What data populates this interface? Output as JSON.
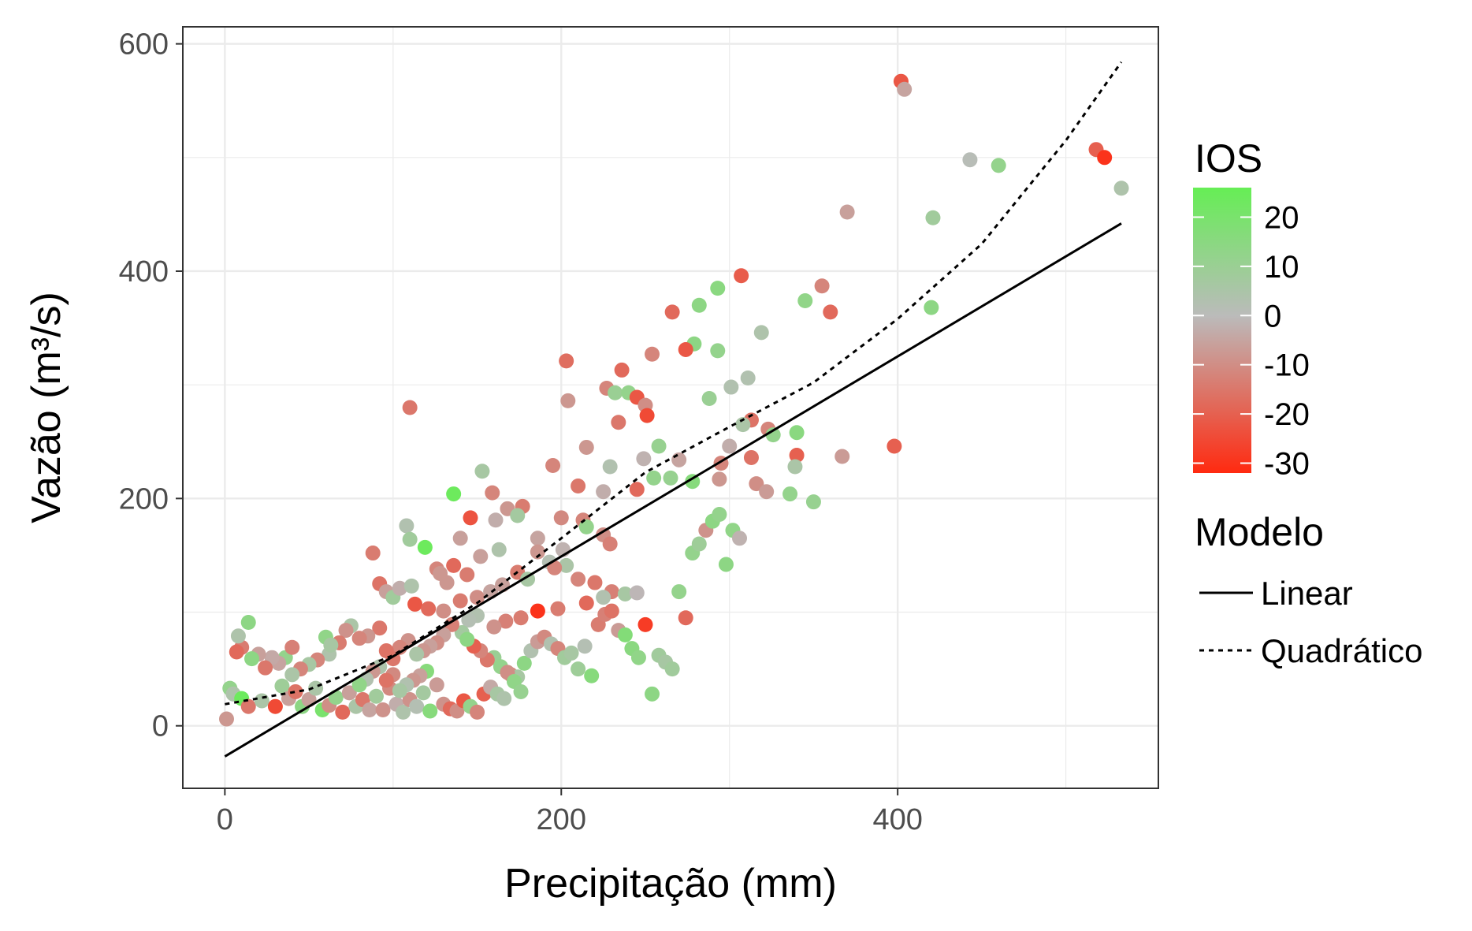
{
  "chart_data": {
    "type": "scatter",
    "xlabel": "Precipitação (mm)",
    "ylabel": "Vazão (m³/s)",
    "xlim": [
      -25,
      555
    ],
    "ylim": [
      -55,
      615
    ],
    "x_ticks": [
      0,
      200,
      400
    ],
    "y_ticks": [
      0,
      200,
      400,
      600
    ],
    "x_tick_labels": [
      "0",
      "200",
      "400"
    ],
    "y_tick_labels": [
      "0",
      "200",
      "400",
      "600"
    ],
    "grid": true,
    "colorbar": {
      "title": "IOS",
      "min": -32,
      "max": 26,
      "ticks": [
        20,
        10,
        0,
        -10,
        -20,
        -30
      ],
      "tick_labels": [
        "20",
        "10",
        "0",
        "-10",
        "-20",
        "-30"
      ],
      "colors": {
        "high": "#66ee55",
        "mid": "#bbbbbb",
        "low": "#ff2a10"
      }
    },
    "legend": {
      "title": "Modelo",
      "placement": "right",
      "items": [
        {
          "label": "Linear",
          "style": "solid"
        },
        {
          "label": "Quadrático",
          "style": "dotted"
        }
      ]
    },
    "series": [
      {
        "name": "Linear",
        "style": "solid",
        "x": [
          0,
          533
        ],
        "y": [
          -27,
          442
        ]
      },
      {
        "name": "Quadrático",
        "style": "dotted",
        "x": [
          0,
          50,
          100,
          150,
          200,
          250,
          300,
          350,
          400,
          450,
          500,
          533
        ],
        "y": [
          19,
          32,
          62,
          108,
          165,
          223,
          263,
          302,
          358,
          424,
          515,
          584
        ]
      }
    ],
    "points": [
      [
        402,
        567,
        -22
      ],
      [
        404,
        560,
        -5
      ],
      [
        518,
        507,
        -20
      ],
      [
        523,
        500,
        -30
      ],
      [
        533,
        473,
        4
      ],
      [
        443,
        498,
        1
      ],
      [
        460,
        493,
        12
      ],
      [
        370,
        452,
        -6
      ],
      [
        421,
        447,
        8
      ],
      [
        420,
        368,
        14
      ],
      [
        307,
        396,
        -21
      ],
      [
        293,
        385,
        15
      ],
      [
        355,
        387,
        -12
      ],
      [
        345,
        374,
        13
      ],
      [
        360,
        364,
        -18
      ],
      [
        266,
        364,
        -18
      ],
      [
        282,
        370,
        14
      ],
      [
        319,
        346,
        4
      ],
      [
        279,
        336,
        14
      ],
      [
        274,
        331,
        -22
      ],
      [
        293,
        330,
        12
      ],
      [
        203,
        321,
        -17
      ],
      [
        254,
        327,
        -12
      ],
      [
        236,
        313,
        -18
      ],
      [
        227,
        297,
        -12
      ],
      [
        232,
        293,
        10
      ],
      [
        240,
        293,
        12
      ],
      [
        245,
        289,
        -22
      ],
      [
        250,
        282,
        -10
      ],
      [
        251,
        273,
        -25
      ],
      [
        311,
        306,
        3
      ],
      [
        301,
        298,
        3
      ],
      [
        288,
        288,
        10
      ],
      [
        204,
        286,
        -8
      ],
      [
        110,
        280,
        -15
      ],
      [
        234,
        267,
        -15
      ],
      [
        313,
        269,
        -16
      ],
      [
        308,
        265,
        5
      ],
      [
        323,
        261,
        -12
      ],
      [
        340,
        258,
        15
      ],
      [
        326,
        256,
        12
      ],
      [
        258,
        246,
        11
      ],
      [
        215,
        245,
        -8
      ],
      [
        300,
        246,
        -3
      ],
      [
        398,
        246,
        -20
      ],
      [
        340,
        238,
        -20
      ],
      [
        367,
        237,
        -7
      ],
      [
        270,
        234,
        -5
      ],
      [
        249,
        235,
        -2
      ],
      [
        313,
        236,
        -16
      ],
      [
        295,
        231,
        -12
      ],
      [
        229,
        228,
        3
      ],
      [
        195,
        229,
        -12
      ],
      [
        339,
        228,
        5
      ],
      [
        153,
        224,
        6
      ],
      [
        265,
        218,
        11
      ],
      [
        255,
        218,
        12
      ],
      [
        210,
        211,
        -15
      ],
      [
        225,
        206,
        -3
      ],
      [
        245,
        208,
        -18
      ],
      [
        278,
        215,
        16
      ],
      [
        294,
        217,
        -8
      ],
      [
        316,
        213,
        -10
      ],
      [
        322,
        206,
        -7
      ],
      [
        336,
        204,
        12
      ],
      [
        350,
        197,
        11
      ],
      [
        136,
        204,
        24
      ],
      [
        159,
        205,
        -12
      ],
      [
        177,
        193,
        -14
      ],
      [
        168,
        191,
        -8
      ],
      [
        174,
        185,
        7
      ],
      [
        200,
        183,
        -11
      ],
      [
        213,
        181,
        -12
      ],
      [
        146,
        183,
        -23
      ],
      [
        161,
        181,
        -3
      ],
      [
        215,
        175,
        12
      ],
      [
        225,
        168,
        -10
      ],
      [
        229,
        160,
        -13
      ],
      [
        201,
        155,
        -2
      ],
      [
        186,
        165,
        -5
      ],
      [
        186,
        153,
        -8
      ],
      [
        193,
        144,
        2
      ],
      [
        203,
        141,
        5
      ],
      [
        163,
        155,
        4
      ],
      [
        152,
        149,
        -6
      ],
      [
        108,
        176,
        3
      ],
      [
        110,
        164,
        8
      ],
      [
        119,
        157,
        24
      ],
      [
        140,
        165,
        -6
      ],
      [
        126,
        138,
        -12
      ],
      [
        128,
        134,
        -8
      ],
      [
        136,
        141,
        -18
      ],
      [
        132,
        126,
        -8
      ],
      [
        144,
        133,
        -14
      ],
      [
        88,
        152,
        -14
      ],
      [
        92,
        125,
        -16
      ],
      [
        96,
        118,
        -6
      ],
      [
        100,
        113,
        8
      ],
      [
        104,
        121,
        -3
      ],
      [
        111,
        123,
        4
      ],
      [
        113,
        107,
        -22
      ],
      [
        121,
        103,
        -18
      ],
      [
        130,
        101,
        -10
      ],
      [
        140,
        110,
        -14
      ],
      [
        150,
        113,
        -10
      ],
      [
        158,
        118,
        -5
      ],
      [
        165,
        124,
        -6
      ],
      [
        174,
        135,
        -14
      ],
      [
        180,
        129,
        6
      ],
      [
        196,
        139,
        -12
      ],
      [
        210,
        129,
        -12
      ],
      [
        220,
        126,
        -15
      ],
      [
        230,
        118,
        -13
      ],
      [
        238,
        116,
        6
      ],
      [
        245,
        117,
        -1
      ],
      [
        225,
        113,
        3
      ],
      [
        215,
        108,
        -18
      ],
      [
        198,
        103,
        -14
      ],
      [
        186,
        101,
        -30
      ],
      [
        176,
        95,
        -14
      ],
      [
        167,
        92,
        -13
      ],
      [
        160,
        87,
        -9
      ],
      [
        150,
        97,
        3
      ],
      [
        145,
        93,
        2
      ],
      [
        141,
        82,
        7
      ],
      [
        135,
        89,
        -13
      ],
      [
        130,
        80,
        -6
      ],
      [
        126,
        73,
        -10
      ],
      [
        122,
        70,
        -6
      ],
      [
        118,
        66,
        -8
      ],
      [
        114,
        63,
        5
      ],
      [
        109,
        75,
        -9
      ],
      [
        104,
        69,
        -12
      ],
      [
        100,
        59,
        -15
      ],
      [
        96,
        66,
        -16
      ],
      [
        92,
        86,
        -15
      ],
      [
        85,
        79,
        -8
      ],
      [
        80,
        77,
        -12
      ],
      [
        75,
        88,
        5
      ],
      [
        72,
        84,
        -9
      ],
      [
        68,
        73,
        -14
      ],
      [
        62,
        63,
        4
      ],
      [
        60,
        78,
        13
      ],
      [
        55,
        58,
        -12
      ],
      [
        50,
        54,
        6
      ],
      [
        45,
        50,
        -12
      ],
      [
        40,
        45,
        5
      ],
      [
        36,
        60,
        12
      ],
      [
        32,
        55,
        -5
      ],
      [
        28,
        60,
        -4
      ],
      [
        24,
        51,
        -15
      ],
      [
        20,
        63,
        -6
      ],
      [
        16,
        59,
        14
      ],
      [
        10,
        69,
        -14
      ],
      [
        7,
        65,
        -18
      ],
      [
        14,
        91,
        14
      ],
      [
        8,
        79,
        4
      ],
      [
        40,
        69,
        -13
      ],
      [
        63,
        71,
        6
      ],
      [
        3,
        33,
        12
      ],
      [
        5,
        28,
        4
      ],
      [
        10,
        24,
        24
      ],
      [
        14,
        17,
        -15
      ],
      [
        22,
        22,
        5
      ],
      [
        30,
        17,
        -25
      ],
      [
        34,
        35,
        9
      ],
      [
        38,
        24,
        -6
      ],
      [
        42,
        30,
        -16
      ],
      [
        46,
        17,
        14
      ],
      [
        50,
        23,
        -6
      ],
      [
        54,
        33,
        5
      ],
      [
        58,
        14,
        20
      ],
      [
        62,
        18,
        -10
      ],
      [
        66,
        25,
        12
      ],
      [
        70,
        12,
        -18
      ],
      [
        74,
        29,
        -6
      ],
      [
        78,
        17,
        5
      ],
      [
        82,
        23,
        -15
      ],
      [
        86,
        14,
        -5
      ],
      [
        90,
        26,
        8
      ],
      [
        94,
        14,
        -9
      ],
      [
        98,
        33,
        -11
      ],
      [
        102,
        19,
        -3
      ],
      [
        106,
        12,
        4
      ],
      [
        110,
        23,
        -9
      ],
      [
        114,
        17,
        2
      ],
      [
        118,
        29,
        7
      ],
      [
        122,
        13,
        16
      ],
      [
        126,
        36,
        -7
      ],
      [
        130,
        19,
        -9
      ],
      [
        134,
        15,
        -18
      ],
      [
        138,
        13,
        -10
      ],
      [
        142,
        22,
        -22
      ],
      [
        146,
        17,
        12
      ],
      [
        150,
        12,
        -12
      ],
      [
        154,
        28,
        -20
      ],
      [
        158,
        34,
        -4
      ],
      [
        162,
        28,
        6
      ],
      [
        166,
        24,
        4
      ],
      [
        1,
        6,
        -8
      ],
      [
        170,
        45,
        -12
      ],
      [
        174,
        43,
        6
      ],
      [
        178,
        55,
        14
      ],
      [
        182,
        66,
        3
      ],
      [
        186,
        74,
        -7
      ],
      [
        190,
        78,
        -11
      ],
      [
        194,
        72,
        3
      ],
      [
        198,
        68,
        -12
      ],
      [
        202,
        60,
        8
      ],
      [
        206,
        64,
        6
      ],
      [
        210,
        50,
        9
      ],
      [
        214,
        70,
        2
      ],
      [
        218,
        44,
        16
      ],
      [
        222,
        89,
        -14
      ],
      [
        226,
        98,
        -13
      ],
      [
        230,
        101,
        -16
      ],
      [
        234,
        84,
        -7
      ],
      [
        238,
        80,
        17
      ],
      [
        242,
        68,
        15
      ],
      [
        246,
        60,
        13
      ],
      [
        250,
        89,
        -28
      ],
      [
        254,
        28,
        14
      ],
      [
        258,
        62,
        8
      ],
      [
        262,
        56,
        6
      ],
      [
        266,
        50,
        8
      ],
      [
        270,
        118,
        12
      ],
      [
        274,
        95,
        -18
      ],
      [
        278,
        152,
        12
      ],
      [
        282,
        160,
        9
      ],
      [
        286,
        172,
        -9
      ],
      [
        290,
        180,
        14
      ],
      [
        294,
        186,
        12
      ],
      [
        298,
        142,
        14
      ],
      [
        302,
        172,
        13
      ],
      [
        306,
        165,
        -2
      ],
      [
        160,
        60,
        10
      ],
      [
        164,
        52,
        12
      ],
      [
        168,
        47,
        -10
      ],
      [
        172,
        39,
        13
      ],
      [
        176,
        30,
        11
      ],
      [
        156,
        58,
        -15
      ],
      [
        152,
        66,
        -12
      ],
      [
        148,
        70,
        -20
      ],
      [
        144,
        76,
        14
      ],
      [
        120,
        48,
        16
      ],
      [
        116,
        44,
        -6
      ],
      [
        112,
        40,
        -8
      ],
      [
        108,
        36,
        3
      ],
      [
        104,
        31,
        6
      ],
      [
        100,
        45,
        -11
      ],
      [
        96,
        40,
        -16
      ],
      [
        92,
        52,
        4
      ],
      [
        88,
        48,
        -8
      ],
      [
        84,
        41,
        3
      ],
      [
        80,
        36,
        13
      ]
    ]
  }
}
